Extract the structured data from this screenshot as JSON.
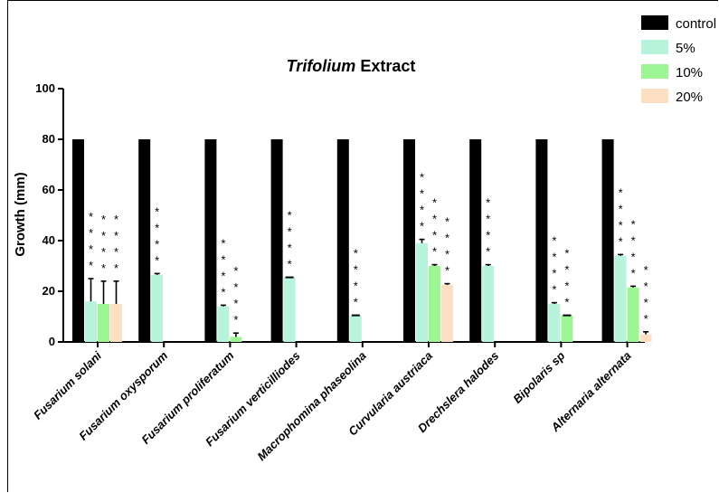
{
  "chart_data": {
    "type": "bar",
    "title_italic": "Trifolium",
    "title_rest": " Extract",
    "xlabel": "",
    "ylabel": "Growth (mm)",
    "ylim": [
      0,
      100
    ],
    "yticks": [
      "0",
      "20",
      "40",
      "60",
      "80",
      "100"
    ],
    "grid": false,
    "legend_position": "top-right",
    "categories": [
      "Fusarium solani",
      "Fusarium oxysporum",
      "Fusarium proliferatum",
      "Fusarium verticilliodes",
      "Macrophomina phaseolina",
      "Curvularia austriaca",
      "Drechslera halodes",
      "Bipolaris sp",
      "Alternaria alternata"
    ],
    "series": [
      {
        "name": "control",
        "color": "#000000",
        "values": [
          80,
          80,
          80,
          80,
          80,
          80,
          80,
          80,
          80
        ],
        "errors": [
          0,
          0,
          0,
          0,
          0,
          0,
          0,
          0,
          0
        ],
        "significance": [
          0,
          0,
          0,
          0,
          0,
          0,
          0,
          0,
          0
        ]
      },
      {
        "name": "5%",
        "color": "#b8f3db",
        "values": [
          16,
          26.5,
          14,
          25.5,
          10.5,
          39,
          30,
          15,
          34
        ],
        "errors": [
          9,
          0.5,
          0.5,
          0,
          0,
          1.5,
          0.5,
          0.5,
          0.5
        ],
        "significance": [
          4,
          4,
          4,
          4,
          4,
          4,
          4,
          4,
          4
        ]
      },
      {
        "name": "10%",
        "color": "#9ef593",
        "values": [
          15,
          0,
          2,
          0,
          0,
          30,
          0,
          10.5,
          21.5
        ],
        "errors": [
          9,
          0,
          1.5,
          0,
          0,
          0.5,
          0,
          0,
          0.5
        ],
        "significance": [
          4,
          0,
          4,
          0,
          0,
          4,
          0,
          4,
          4
        ]
      },
      {
        "name": "20%",
        "color": "#fde0c4",
        "values": [
          15,
          0,
          0,
          0,
          0,
          22.5,
          0,
          0,
          3
        ],
        "errors": [
          9,
          0,
          0,
          0,
          0,
          0.5,
          0,
          0,
          1
        ],
        "significance": [
          4,
          0,
          0,
          0,
          0,
          4,
          0,
          0,
          4
        ]
      }
    ],
    "significance_symbol": "*"
  }
}
